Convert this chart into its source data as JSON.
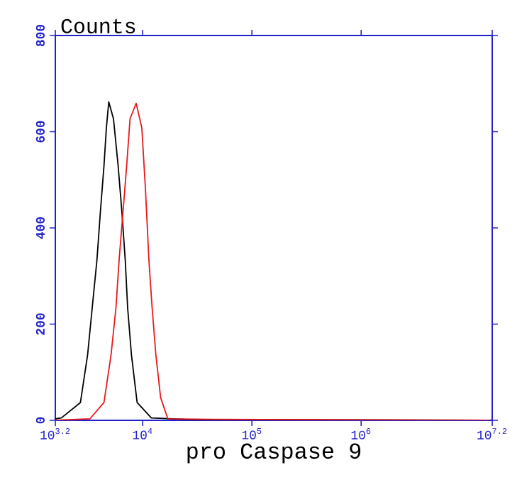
{
  "chart_data": {
    "type": "line",
    "ylabel": "Counts",
    "xlabel": "pro Caspase 9",
    "log": "x",
    "xlim": [
      1585,
      15849000
    ],
    "xticks": [
      {
        "value": 1585,
        "label": "10$^{3.2}$"
      },
      {
        "value": 10000,
        "label": "10$^{4}$"
      },
      {
        "value": 100000,
        "label": "10$^{5}$"
      },
      {
        "value": 1000000,
        "label": "10$^{6}$"
      },
      {
        "value": 15849000,
        "label": "10$^{7.2}$"
      }
    ],
    "ylim": [
      0,
      800
    ],
    "yticks": [
      0,
      200,
      400,
      600,
      800
    ],
    "series": [
      {
        "color": "#000000",
        "x": [
          1585,
          1800,
          2690,
          3130,
          3450,
          3810,
          4090,
          4420,
          4650,
          4890,
          5400,
          5960,
          6460,
          6920,
          7280,
          7890,
          8890,
          12000,
          24100,
          15000000
        ],
        "values": [
          3,
          5,
          37,
          136,
          234,
          333,
          431,
          529,
          608,
          662,
          627,
          529,
          431,
          333,
          234,
          136,
          37,
          5,
          2,
          0
        ]
      },
      {
        "color": "#e8191c",
        "x": [
          1585,
          3280,
          4420,
          5130,
          5690,
          6080,
          6590,
          7130,
          7660,
          8710,
          9820,
          10600,
          11400,
          12200,
          13200,
          14600,
          17000,
          43900,
          15000000
        ],
        "values": [
          0,
          3,
          37,
          136,
          234,
          333,
          431,
          529,
          627,
          659,
          608,
          480,
          333,
          234,
          136,
          47,
          3,
          2,
          0
        ]
      }
    ]
  }
}
